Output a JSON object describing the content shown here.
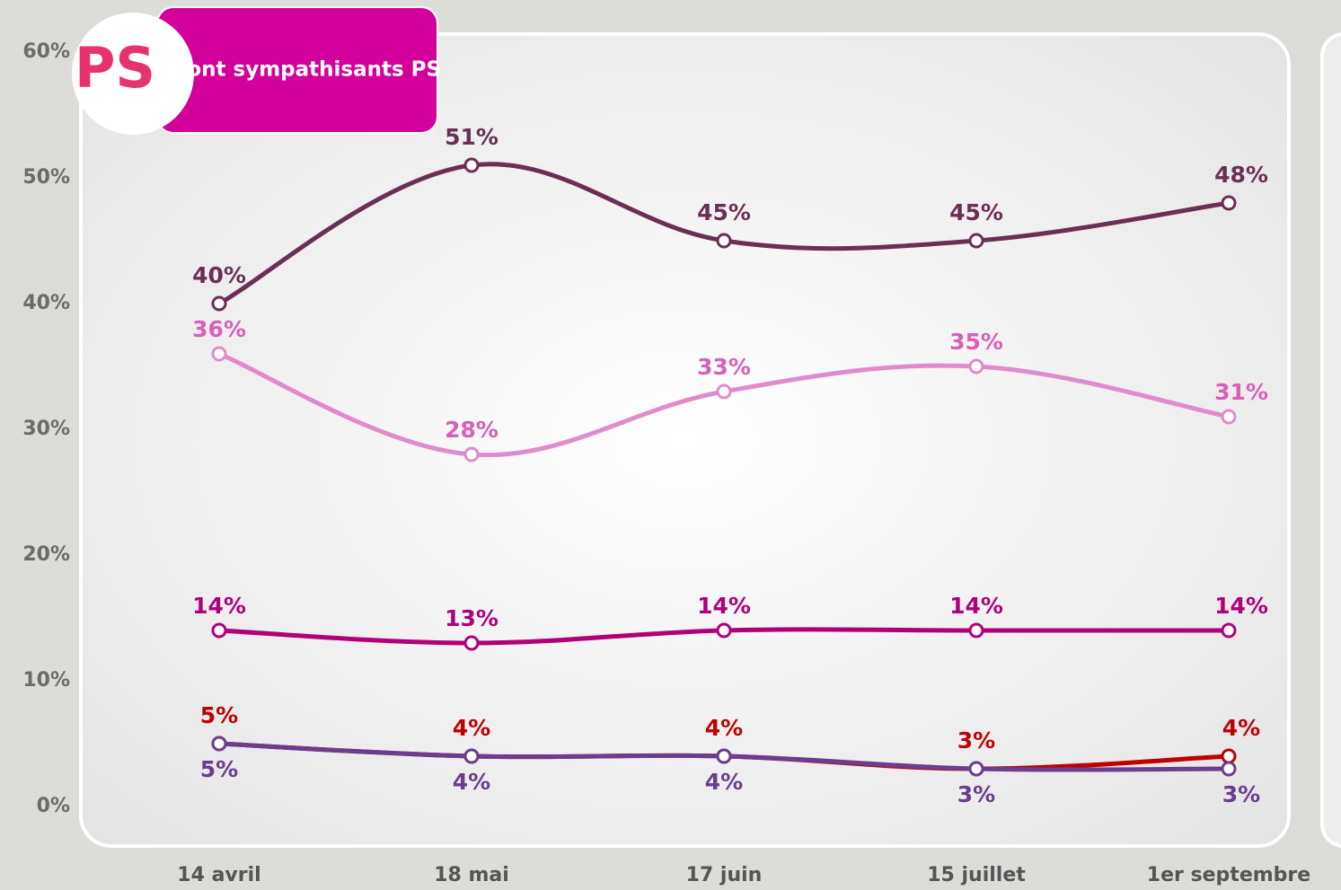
{
  "chart_data": {
    "type": "line",
    "logo": "PS",
    "title": "…dont sympathisants PS",
    "categories": [
      "14 avril",
      "18 mai",
      "17 juin",
      "15 juillet",
      "1er septembre"
    ],
    "ylim": [
      0,
      60
    ],
    "yticks": [
      {
        "value": 0,
        "label": "0%"
      },
      {
        "value": 10,
        "label": "10%"
      },
      {
        "value": 20,
        "label": "20%"
      },
      {
        "value": 30,
        "label": "30%"
      },
      {
        "value": 40,
        "label": "40%"
      },
      {
        "value": 50,
        "label": "50%"
      },
      {
        "value": 60,
        "label": "60%"
      }
    ],
    "series": [
      {
        "color": "#6b2f55",
        "values": [
          40,
          51,
          45,
          45,
          48
        ],
        "value_labels": [
          "40%",
          "51%",
          "45%",
          "45%",
          "48%"
        ]
      },
      {
        "color": "#e08ccc",
        "values": [
          36,
          28,
          33,
          35,
          31
        ],
        "value_labels": [
          "36%",
          "28%",
          "33%",
          "35%",
          "31%"
        ]
      },
      {
        "color": "#b0007a",
        "values": [
          14,
          13,
          14,
          14,
          14
        ],
        "value_labels": [
          "14%",
          "13%",
          "14%",
          "14%",
          "14%"
        ]
      },
      {
        "color": "#c00000",
        "values": [
          5,
          4,
          4,
          3,
          4
        ],
        "value_labels": [
          "5%",
          "4%",
          "4%",
          "3%",
          "4%"
        ]
      },
      {
        "color": "#6a3d8f",
        "values": [
          5,
          4,
          4,
          3,
          3
        ],
        "value_labels": [
          "5%",
          "4%",
          "4%",
          "3%",
          "3%"
        ]
      }
    ]
  }
}
